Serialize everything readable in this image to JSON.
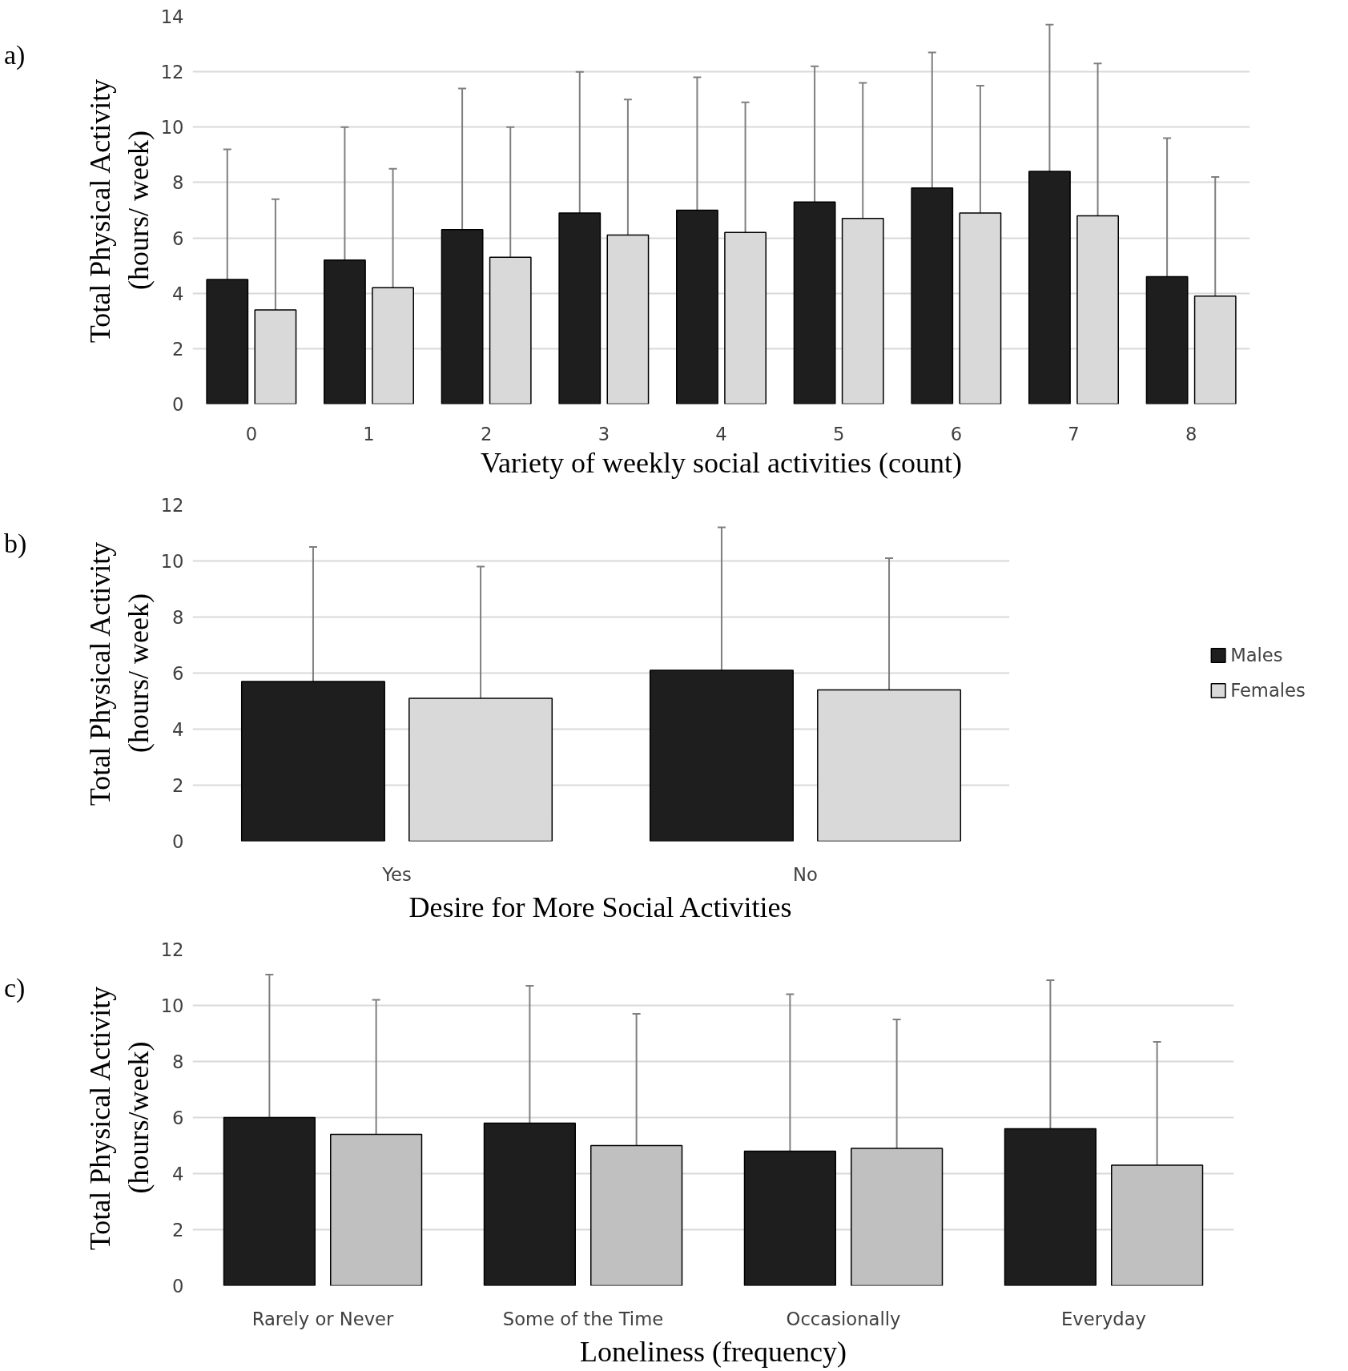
{
  "chart_data": [
    {
      "type": "bar",
      "xlabel": "Variety of weekly social activities (count)",
      "ylabel": "Total Physical Activity\n(hours/ week)",
      "annotations": [
        "a)"
      ],
      "categories": [
        "0",
        "1",
        "2",
        "3",
        "4",
        "5",
        "6",
        "7",
        "8"
      ],
      "ylim": [
        0,
        14
      ],
      "yticks": [
        0,
        2,
        4,
        6,
        8,
        10,
        12,
        14
      ],
      "grid": "y",
      "legend": false,
      "series": [
        {
          "color": "#1e1e1e",
          "values": [
            4.5,
            5.2,
            6.3,
            6.9,
            7.0,
            7.3,
            7.8,
            8.4,
            4.6
          ],
          "errors": [
            [
              4.5,
              9.2
            ],
            [
              5.2,
              10.0
            ],
            [
              6.3,
              11.4
            ],
            [
              6.9,
              12.0
            ],
            [
              7.0,
              11.8
            ],
            [
              7.3,
              12.2
            ],
            [
              7.8,
              12.7
            ],
            [
              8.4,
              13.7
            ],
            [
              4.6,
              9.6
            ]
          ]
        },
        {
          "color": "#d9d9d9",
          "values": [
            3.4,
            4.2,
            5.3,
            6.1,
            6.2,
            6.7,
            6.9,
            6.8,
            3.9
          ],
          "errors": [
            [
              3.4,
              7.4
            ],
            [
              4.2,
              8.5
            ],
            [
              5.3,
              10.0
            ],
            [
              6.1,
              11.0
            ],
            [
              6.2,
              10.9
            ],
            [
              6.7,
              11.6
            ],
            [
              6.9,
              11.5
            ],
            [
              6.8,
              12.3
            ],
            [
              3.9,
              8.2
            ]
          ]
        }
      ]
    },
    {
      "type": "bar",
      "xlabel": "Desire for More Social Activities",
      "ylabel": "Total Physical Activity\n(hours/ week)",
      "annotations": [
        "b)"
      ],
      "categories": [
        "Yes",
        "No"
      ],
      "ylim": [
        0,
        12
      ],
      "yticks": [
        0,
        2,
        4,
        6,
        8,
        10,
        12
      ],
      "grid": "y",
      "legend": "right",
      "series": [
        {
          "name": "Males",
          "color": "#1e1e1e",
          "values": [
            5.7,
            6.1
          ],
          "errors": [
            [
              5.7,
              10.5
            ],
            [
              6.1,
              11.2
            ]
          ]
        },
        {
          "name": "Females",
          "color": "#d9d9d9",
          "values": [
            5.1,
            5.4
          ],
          "errors": [
            [
              5.1,
              9.8
            ],
            [
              5.4,
              10.1
            ]
          ]
        }
      ]
    },
    {
      "type": "bar",
      "xlabel": "Loneliness (frequency)",
      "ylabel": "Total Physical Activity\n(hours/week)",
      "annotations": [
        "c)"
      ],
      "categories": [
        "Rarely or Never",
        "Some of the Time",
        "Occasionally",
        "Everyday"
      ],
      "ylim": [
        0,
        12
      ],
      "yticks": [
        0,
        2,
        4,
        6,
        8,
        10,
        12
      ],
      "grid": "y",
      "legend": false,
      "series": [
        {
          "color": "#1e1e1e",
          "values": [
            6.0,
            5.8,
            4.8,
            5.6
          ],
          "errors": [
            [
              6.0,
              11.1
            ],
            [
              5.8,
              10.7
            ],
            [
              4.8,
              10.4
            ],
            [
              5.6,
              10.9
            ]
          ]
        },
        {
          "color": "#c0c0c0",
          "values": [
            5.4,
            5.0,
            4.9,
            4.3
          ],
          "errors": [
            [
              5.4,
              10.2
            ],
            [
              5.0,
              9.7
            ],
            [
              4.9,
              9.5
            ],
            [
              4.3,
              8.7
            ]
          ]
        }
      ]
    }
  ]
}
